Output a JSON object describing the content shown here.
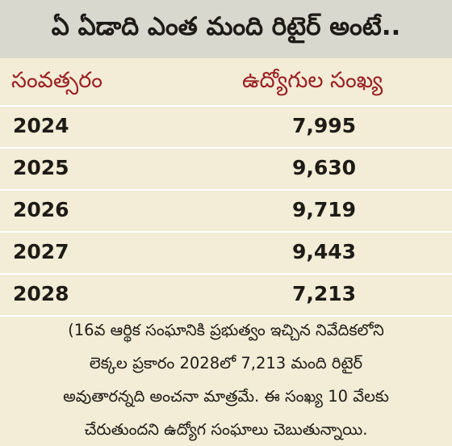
{
  "title": "ఏ ఏడాది ఎంత మంది రిటైర్ అంటే..",
  "table": {
    "headers": [
      "సంవత్సరం",
      "ఉద్యోగుల సంఖ్య"
    ],
    "rows": [
      {
        "year": "2024",
        "count": "7,995"
      },
      {
        "year": "2025",
        "count": "9,630"
      },
      {
        "year": "2026",
        "count": "9,719"
      },
      {
        "year": "2027",
        "count": "9,443"
      },
      {
        "year": "2028",
        "count": "7,213"
      }
    ]
  },
  "note": [
    "(16వ ఆర్థిక సంఘానికి ప్రభుత్వం ఇచ్చిన నివేదికలోని",
    "లెక్కల ప్రకారం 2028లో 7,213 మంది రిటైర్",
    "అవుతారన్నది అంచనా మాత్రమే. ఈ సంఖ్య 10 వేలకు",
    "చేరుతుందని ఉద్యోగ సంఘాలు చెబుతున్నాయి."
  ]
}
